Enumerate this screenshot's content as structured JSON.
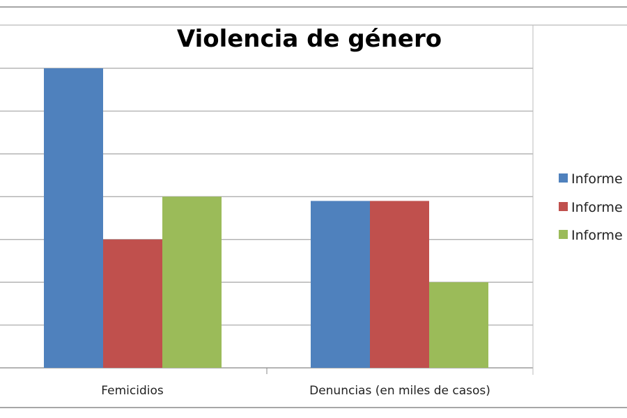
{
  "chart_data": {
    "type": "bar",
    "title": "Violencia de género",
    "categories": [
      "Femicidios",
      "Denuncias (en miles de casos)"
    ],
    "series": [
      {
        "name": "Informe",
        "color": "#4f81bd",
        "values": [
          7,
          3.9
        ]
      },
      {
        "name": "Informe",
        "color": "#c0504d",
        "values": [
          3,
          3.9
        ]
      },
      {
        "name": "Informe",
        "color": "#9bbb59",
        "values": [
          4,
          2
        ]
      }
    ],
    "ylim": [
      0,
      7
    ],
    "grid": true,
    "y_tick_labels_visible": false,
    "legend_position": "right"
  }
}
